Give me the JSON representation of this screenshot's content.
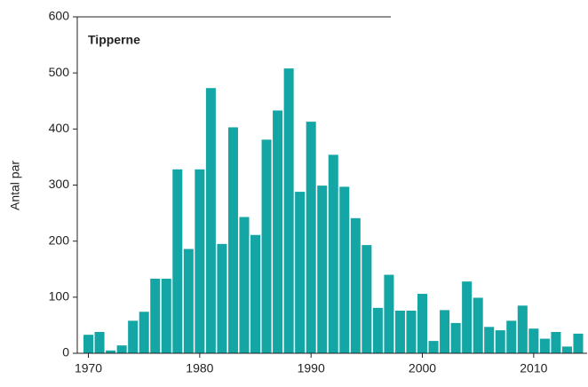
{
  "chart_data": {
    "type": "bar",
    "title": "Tipperne",
    "ylabel": "Antal par",
    "x": [
      1970,
      1971,
      1972,
      1973,
      1974,
      1975,
      1976,
      1977,
      1978,
      1979,
      1980,
      1981,
      1982,
      1983,
      1984,
      1985,
      1986,
      1987,
      1988,
      1989,
      1990,
      1991,
      1992,
      1993,
      1994,
      1995,
      1996,
      1997,
      1998,
      1999,
      2000,
      2001,
      2002,
      2003,
      2004,
      2005,
      2006,
      2007,
      2008,
      2009,
      2010,
      2011,
      2012,
      2013,
      2014
    ],
    "values": [
      33,
      38,
      5,
      14,
      58,
      74,
      133,
      133,
      328,
      186,
      328,
      473,
      195,
      403,
      243,
      211,
      381,
      433,
      508,
      288,
      413,
      299,
      354,
      297,
      241,
      193,
      81,
      140,
      76,
      76,
      106,
      22,
      77,
      54,
      128,
      99,
      47,
      41,
      58,
      85,
      44,
      26,
      38,
      12,
      35
    ],
    "color": "#14a5a5",
    "xlim": [
      1969,
      2014.8
    ],
    "xticks": [
      1970,
      1980,
      1990,
      2000,
      2010
    ],
    "ylim": [
      0,
      600
    ],
    "yticks": [
      0,
      100,
      200,
      300,
      400,
      500,
      600
    ]
  }
}
